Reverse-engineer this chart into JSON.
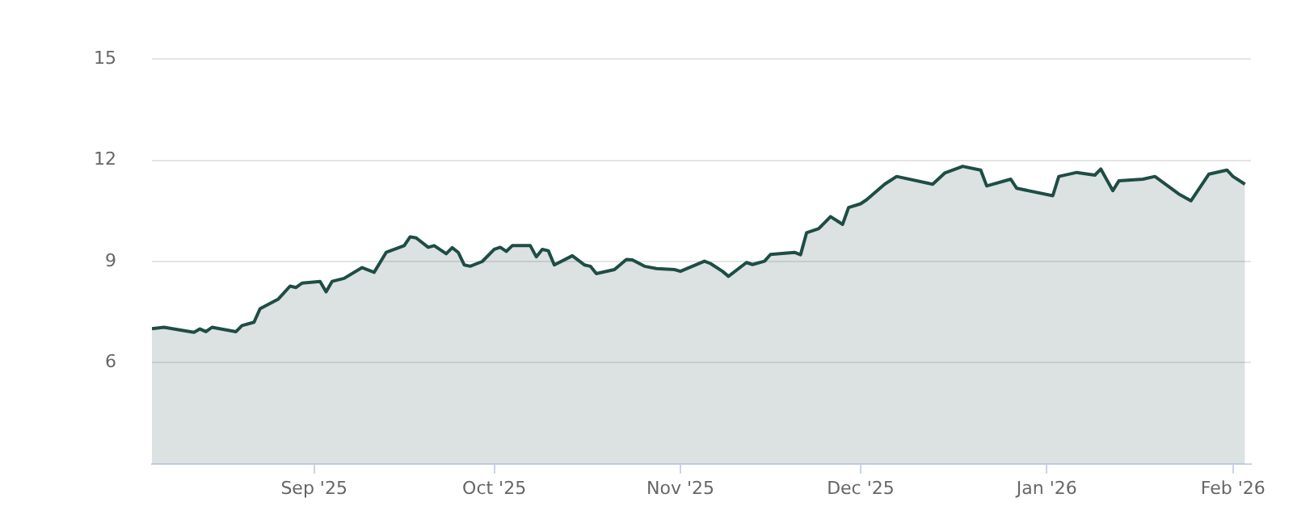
{
  "chart_data": {
    "type": "area",
    "x": [
      "2025-08-05",
      "2025-08-07",
      "2025-08-12",
      "2025-08-13",
      "2025-08-14",
      "2025-08-15",
      "2025-08-19",
      "2025-08-20",
      "2025-08-22",
      "2025-08-23",
      "2025-08-26",
      "2025-08-28",
      "2025-08-29",
      "2025-08-30",
      "2025-09-02",
      "2025-09-03",
      "2025-09-04",
      "2025-09-06",
      "2025-09-09",
      "2025-09-11",
      "2025-09-13",
      "2025-09-16",
      "2025-09-17",
      "2025-09-18",
      "2025-09-20",
      "2025-09-21",
      "2025-09-23",
      "2025-09-24",
      "2025-09-25",
      "2025-09-26",
      "2025-09-27",
      "2025-09-29",
      "2025-10-01",
      "2025-10-02",
      "2025-10-03",
      "2025-10-04",
      "2025-10-07",
      "2025-10-08",
      "2025-10-09",
      "2025-10-10",
      "2025-10-11",
      "2025-10-14",
      "2025-10-16",
      "2025-10-17",
      "2025-10-18",
      "2025-10-21",
      "2025-10-23",
      "2025-10-24",
      "2025-10-26",
      "2025-10-28",
      "2025-10-31",
      "2025-11-01",
      "2025-11-05",
      "2025-11-06",
      "2025-11-08",
      "2025-11-09",
      "2025-11-12",
      "2025-11-13",
      "2025-11-15",
      "2025-11-16",
      "2025-11-20",
      "2025-11-21",
      "2025-11-22",
      "2025-11-24",
      "2025-11-26",
      "2025-11-28",
      "2025-11-29",
      "2025-12-01",
      "2025-12-02",
      "2025-12-05",
      "2025-12-07",
      "2025-12-13",
      "2025-12-15",
      "2025-12-18",
      "2025-12-21",
      "2025-12-22",
      "2025-12-26",
      "2025-12-27",
      "2026-01-02",
      "2026-01-03",
      "2026-01-06",
      "2026-01-09",
      "2026-01-10",
      "2026-01-12",
      "2026-01-13",
      "2026-01-17",
      "2026-01-19",
      "2026-01-23",
      "2026-01-25",
      "2026-01-28",
      "2026-01-31",
      "2026-02-01",
      "2026-02-03"
    ],
    "series": [
      {
        "color": "#1e4d45",
        "values": [
          7.01,
          7.05,
          6.9,
          7.0,
          6.92,
          7.05,
          6.92,
          7.1,
          7.2,
          7.6,
          7.88,
          8.27,
          8.23,
          8.36,
          8.41,
          8.1,
          8.41,
          8.5,
          8.82,
          8.68,
          9.27,
          9.47,
          9.73,
          9.7,
          9.42,
          9.47,
          9.23,
          9.41,
          9.27,
          8.9,
          8.86,
          9.0,
          9.36,
          9.42,
          9.3,
          9.47,
          9.47,
          9.14,
          9.36,
          9.32,
          8.9,
          9.17,
          8.9,
          8.86,
          8.64,
          8.76,
          9.06,
          9.05,
          8.86,
          8.79,
          8.76,
          8.71,
          9.01,
          8.94,
          8.71,
          8.56,
          8.97,
          8.91,
          9.01,
          9.21,
          9.27,
          9.2,
          9.85,
          9.97,
          10.33,
          10.1,
          10.6,
          10.71,
          10.83,
          11.29,
          11.52,
          11.29,
          11.62,
          11.82,
          11.71,
          11.24,
          11.44,
          11.17,
          10.95,
          11.52,
          11.64,
          11.56,
          11.74,
          11.1,
          11.39,
          11.44,
          11.52,
          11.0,
          10.8,
          11.59,
          11.71,
          11.52,
          11.29
        ]
      }
    ],
    "xlim": [
      "2025-08-05",
      "2026-02-04"
    ],
    "xticks": [
      {
        "value": "2025-09-01",
        "label": "Sep '25"
      },
      {
        "value": "2025-10-01",
        "label": "Oct '25"
      },
      {
        "value": "2025-11-01",
        "label": "Nov '25"
      },
      {
        "value": "2025-12-01",
        "label": "Dec '25"
      },
      {
        "value": "2026-01-01",
        "label": "Jan '26"
      },
      {
        "value": "2026-02-01",
        "label": "Feb '26"
      }
    ],
    "ylim": [
      3,
      15
    ],
    "yticks": [
      6,
      9,
      12,
      15
    ],
    "grid": "y"
  }
}
